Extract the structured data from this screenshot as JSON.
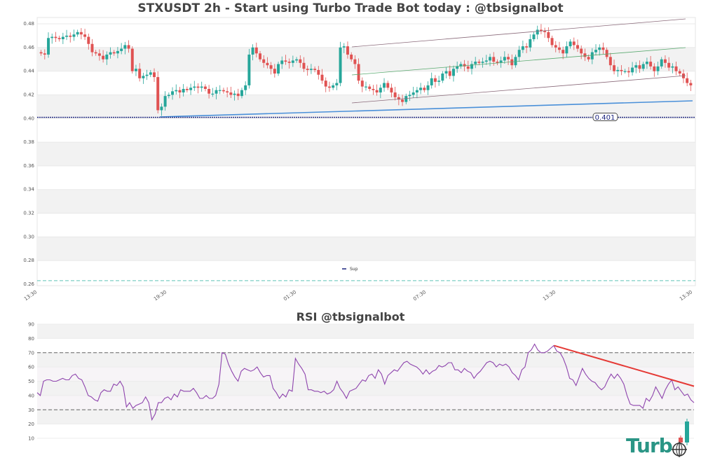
{
  "header": {
    "title": "STXUSDT 2h - Start using Turbo Trade Bot today : @tbsignalbot",
    "rsi_title": "RSI @tbsignalbot"
  },
  "logo": {
    "text": "Turb",
    "icon": "globe-crosshair-icon"
  },
  "colors": {
    "up": "#26a69a",
    "down": "#e05252",
    "support": "#1a237e",
    "trend_blue": "#4a90d9",
    "channel": "#8a6a7a",
    "channel_mid": "#5aaa70",
    "rsi_line": "#8e44ad",
    "rsi_trend": "#e53935",
    "band": "#f2f2f2",
    "teal_dash": "#5fc4b8"
  },
  "chart_data": [
    {
      "type": "candlestick",
      "title": "STXUSDT 2h - Start using Turbo Trade Bot today : @tbsignalbot",
      "xlabel": "",
      "ylabel": "",
      "ylim": [
        0.26,
        0.48
      ],
      "yticks": [
        "0.48",
        "0.46",
        "0.44",
        "0.42",
        "0.40",
        "0.38",
        "0.36",
        "0.34",
        "0.32",
        "0.30",
        "0.28",
        "0.26"
      ],
      "xticks": [
        "13:30",
        "19:30",
        "01:30",
        "07:30",
        "13:30",
        "13:30"
      ],
      "legend": [
        {
          "name": "Sup",
          "color": "#1a237e"
        }
      ],
      "support_level": 0.401,
      "support_label": "0.401",
      "lower_dashed_level": 0.263,
      "closes": [
        0.455,
        0.454,
        0.468,
        0.469,
        0.468,
        0.467,
        0.469,
        0.47,
        0.469,
        0.471,
        0.473,
        0.471,
        0.469,
        0.463,
        0.456,
        0.455,
        0.453,
        0.45,
        0.454,
        0.456,
        0.455,
        0.457,
        0.459,
        0.462,
        0.459,
        0.44,
        0.442,
        0.434,
        0.436,
        0.437,
        0.439,
        0.435,
        0.407,
        0.41,
        0.419,
        0.42,
        0.423,
        0.424,
        0.422,
        0.425,
        0.424,
        0.426,
        0.427,
        0.426,
        0.427,
        0.425,
        0.421,
        0.421,
        0.424,
        0.424,
        0.423,
        0.422,
        0.42,
        0.421,
        0.419,
        0.424,
        0.428,
        0.454,
        0.46,
        0.455,
        0.45,
        0.447,
        0.445,
        0.442,
        0.438,
        0.446,
        0.449,
        0.448,
        0.447,
        0.449,
        0.45,
        0.447,
        0.442,
        0.441,
        0.442,
        0.441,
        0.437,
        0.432,
        0.427,
        0.426,
        0.428,
        0.43,
        0.46,
        0.461,
        0.454,
        0.45,
        0.446,
        0.432,
        0.427,
        0.427,
        0.425,
        0.424,
        0.422,
        0.426,
        0.43,
        0.426,
        0.422,
        0.418,
        0.416,
        0.414,
        0.419,
        0.42,
        0.422,
        0.424,
        0.426,
        0.424,
        0.428,
        0.434,
        0.431,
        0.432,
        0.438,
        0.44,
        0.436,
        0.442,
        0.444,
        0.446,
        0.444,
        0.442,
        0.446,
        0.448,
        0.447,
        0.448,
        0.449,
        0.452,
        0.448,
        0.447,
        0.449,
        0.452,
        0.45,
        0.445,
        0.452,
        0.458,
        0.461,
        0.46,
        0.467,
        0.471,
        0.475,
        0.474,
        0.473,
        0.468,
        0.462,
        0.46,
        0.458,
        0.455,
        0.461,
        0.465,
        0.462,
        0.459,
        0.455,
        0.452,
        0.45,
        0.456,
        0.458,
        0.46,
        0.458,
        0.452,
        0.445,
        0.44,
        0.441,
        0.44,
        0.44,
        0.439,
        0.443,
        0.445,
        0.442,
        0.446,
        0.448,
        0.444,
        0.44,
        0.444,
        0.45,
        0.447,
        0.443,
        0.444,
        0.44,
        0.438,
        0.434,
        0.43,
        0.428
      ]
    },
    {
      "type": "line",
      "title": "RSI @tbsignalbot",
      "ylim": [
        10,
        90
      ],
      "yticks": [
        "90",
        "80",
        "70",
        "60",
        "50",
        "40",
        "30",
        "20",
        "10"
      ],
      "overbought": 70,
      "oversold": 30,
      "trendline": {
        "from": [
          0.787,
          75
        ],
        "to": [
          1.0,
          46.5
        ]
      },
      "values": [
        42,
        40,
        50,
        51,
        51,
        50,
        50,
        51,
        52,
        51,
        51,
        54,
        55,
        52,
        51,
        46,
        40,
        39,
        37,
        36,
        42,
        44,
        43,
        43,
        48,
        47,
        50,
        46,
        32,
        35,
        31,
        33,
        34,
        35,
        39,
        35,
        23,
        27,
        35,
        35,
        38,
        39,
        37,
        41,
        39,
        44,
        43,
        43,
        43,
        45,
        42,
        38,
        38,
        40,
        38,
        38,
        40,
        48,
        70,
        69,
        62,
        57,
        53,
        50,
        57,
        59,
        58,
        57,
        58,
        60,
        56,
        53,
        54,
        54,
        45,
        42,
        38,
        41,
        39,
        44,
        43,
        66,
        62,
        59,
        55,
        44,
        44,
        43,
        43,
        42,
        43,
        41,
        42,
        44,
        50,
        45,
        42,
        38,
        43,
        44,
        45,
        48,
        51,
        50,
        54,
        55,
        52,
        58,
        55,
        48,
        54,
        56,
        58,
        57,
        60,
        63,
        64,
        62,
        61,
        60,
        58,
        55,
        58,
        55,
        57,
        58,
        61,
        60,
        61,
        63,
        63,
        58,
        58,
        56,
        59,
        57,
        56,
        52,
        55,
        57,
        60,
        63,
        64,
        63,
        60,
        62,
        61,
        62,
        60,
        56,
        54,
        51,
        58,
        60,
        70,
        72,
        76,
        72,
        70,
        70,
        71,
        73,
        75,
        71,
        70,
        66,
        60,
        52,
        51,
        47,
        53,
        59,
        55,
        52,
        50,
        49,
        46,
        44,
        46,
        51,
        55,
        52,
        55,
        52,
        48,
        40,
        34,
        33,
        33,
        33,
        31,
        38,
        36,
        40,
        46,
        42,
        38,
        44,
        48,
        51,
        44,
        46,
        43,
        40,
        41,
        37,
        35
      ]
    }
  ]
}
